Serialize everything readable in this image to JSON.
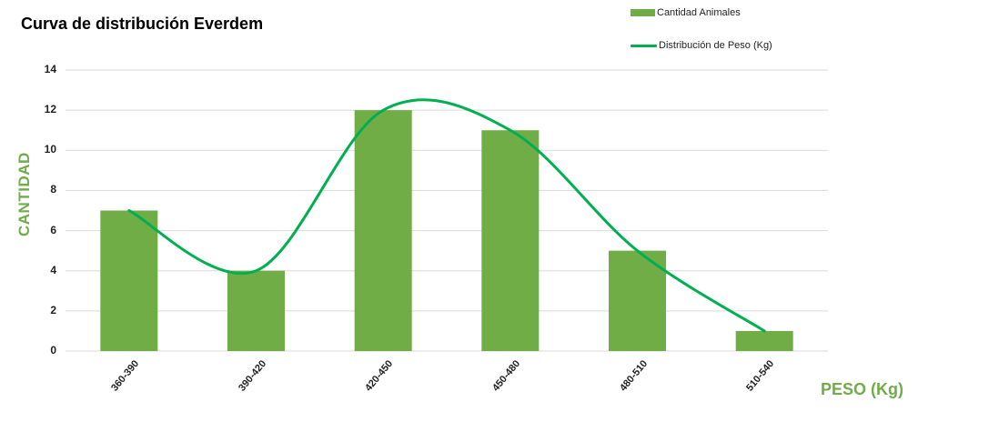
{
  "chart_data": {
    "type": "bar",
    "title": "Curva de distribución Everdem",
    "xlabel": "PESO (Kg)",
    "ylabel": "CANTIDAD",
    "ylim": [
      0,
      14
    ],
    "yticks": [
      "0",
      "2",
      "4",
      "6",
      "8",
      "10",
      "12",
      "14"
    ],
    "grid": true,
    "legend_position": "top-right",
    "categories": [
      "360-390",
      "390-420",
      "420-450",
      "450-480",
      "480-510",
      "510-540"
    ],
    "series": [
      {
        "name": "Cantidad Animales",
        "type": "bar",
        "color": "#70ad47",
        "values": [
          7,
          4,
          12,
          11,
          5,
          1
        ]
      },
      {
        "name": "Distribución de Peso (Kg)",
        "type": "line",
        "smooth": true,
        "color": "#00b050",
        "values": [
          7,
          4,
          12,
          11,
          5,
          1
        ]
      }
    ]
  },
  "legend": {
    "bar_label": "Cantidad Animales",
    "line_label": "Distribución de Peso (Kg)"
  },
  "colors": {
    "bar": "#70ad47",
    "line": "#00b050",
    "axis_title": "#70ad47",
    "grid": "#d9d9d9"
  }
}
